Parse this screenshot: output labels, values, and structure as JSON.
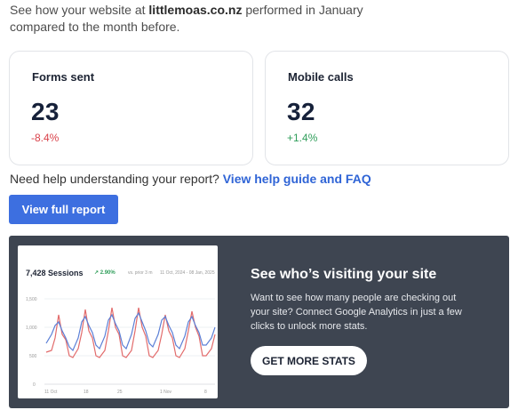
{
  "intro": {
    "prefix": "See how your website at ",
    "site": "littlemoas.co.nz",
    "suffix": " performed in January compared to the month before."
  },
  "metrics": [
    {
      "label": "Forms sent",
      "value": "23",
      "change": "-8.4%",
      "trend": "negative"
    },
    {
      "label": "Mobile calls",
      "value": "32",
      "change": "+1.4%",
      "trend": "positive"
    }
  ],
  "help": {
    "text": "Need help understanding your report?",
    "link": "View help guide and FAQ"
  },
  "buttons": {
    "full_report": "View full report",
    "get_stats": "GET MORE STATS"
  },
  "promo": {
    "title": "See who’s visiting your site",
    "body": "Want to see how many people are checking out your site? Connect Google Analytics in just a few clicks to unlock more stats."
  },
  "chart_preview": {
    "title": "7,428 Sessions",
    "delta": "↗ 2.90%",
    "compare": "vs. prior 3 m",
    "range": "11 Oct, 2024 - 08 Jan, 2025",
    "y_ticks": [
      "1,500",
      "1,000",
      "500",
      "0"
    ],
    "x_ticks": [
      "11 Oct",
      "18",
      "25",
      "1 Nov",
      "8"
    ],
    "colors": {
      "series_a": "#5b7fd6",
      "series_b": "#e26b6b",
      "delta": "#2f9e5a"
    }
  },
  "colors": {
    "accent": "#3d6fe0",
    "link": "#2f64d6",
    "negative": "#d9424a",
    "positive": "#2f9e5a",
    "promo_bg": "#3e4551"
  }
}
